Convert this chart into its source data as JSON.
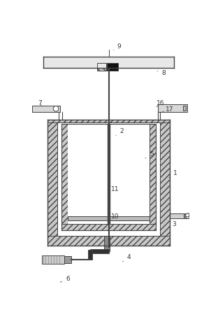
{
  "line_color": "#444444",
  "hatch_fc": "#c8c8c8",
  "white": "#ffffff",
  "dark": "#111111",
  "gray_light": "#dddddd",
  "gray_med": "#aaaaaa",
  "label_color": "#333333",
  "label_fs": 6.5,
  "labels": [
    [
      "9",
      162,
      14,
      168,
      24,
      "left"
    ],
    [
      "8",
      244,
      62,
      250,
      68,
      "left"
    ],
    [
      "7",
      28,
      130,
      18,
      126,
      "left"
    ],
    [
      "2",
      168,
      168,
      175,
      178,
      "left"
    ],
    [
      "5",
      222,
      215,
      228,
      220,
      "left"
    ],
    [
      "1",
      268,
      252,
      274,
      258,
      "left"
    ],
    [
      "16",
      235,
      122,
      241,
      128,
      "left"
    ],
    [
      "17",
      252,
      132,
      258,
      138,
      "left"
    ],
    [
      "11",
      150,
      282,
      156,
      288,
      "left"
    ],
    [
      "10",
      152,
      332,
      158,
      338,
      "left"
    ],
    [
      "3",
      266,
      346,
      272,
      352,
      "left"
    ],
    [
      "4",
      182,
      406,
      188,
      412,
      "left"
    ],
    [
      "6",
      68,
      446,
      74,
      452,
      "left"
    ]
  ]
}
